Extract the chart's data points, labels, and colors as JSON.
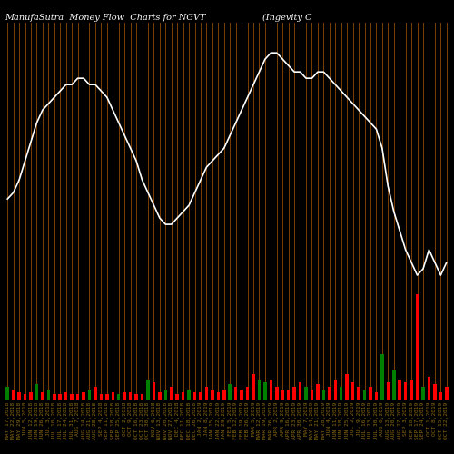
{
  "title": "ManufaSutra  Money Flow  Charts for NGVT                    (Ingevity C                                                      orpor",
  "background_color": "#000000",
  "bar_line_color": "#8B4500",
  "price_line_color": "#ffffff",
  "bar_colors": [
    "green",
    "red",
    "red",
    "red",
    "red",
    "green",
    "red",
    "green",
    "red",
    "red",
    "red",
    "red",
    "red",
    "red",
    "green",
    "red",
    "red",
    "red",
    "red",
    "green",
    "red",
    "red",
    "red",
    "red",
    "green",
    "red",
    "red",
    "green",
    "red",
    "red",
    "red",
    "green",
    "red",
    "red",
    "red",
    "red",
    "red",
    "red",
    "green",
    "red",
    "red",
    "red",
    "red",
    "green",
    "green",
    "red",
    "red",
    "red",
    "red",
    "red",
    "red",
    "green",
    "red",
    "red",
    "green",
    "red",
    "red",
    "green",
    "red",
    "red",
    "red",
    "green",
    "red",
    "red",
    "green",
    "red",
    "green",
    "red",
    "red",
    "red",
    "red",
    "green",
    "red",
    "red",
    "red",
    "red"
  ],
  "bar_heights": [
    5,
    4,
    3,
    2,
    3,
    6,
    3,
    4,
    2,
    2,
    3,
    2,
    2,
    3,
    4,
    5,
    2,
    2,
    3,
    2,
    3,
    3,
    2,
    2,
    8,
    7,
    3,
    4,
    5,
    2,
    3,
    4,
    3,
    3,
    5,
    4,
    3,
    4,
    6,
    5,
    4,
    5,
    10,
    8,
    7,
    8,
    5,
    4,
    4,
    5,
    7,
    5,
    4,
    6,
    4,
    5,
    8,
    5,
    10,
    7,
    5,
    4,
    5,
    3,
    18,
    7,
    12,
    8,
    7,
    8,
    42,
    5,
    9,
    6,
    3,
    5
  ],
  "price_values": [
    55,
    56,
    58,
    61,
    64,
    67,
    69,
    70,
    71,
    72,
    73,
    73,
    74,
    74,
    73,
    73,
    72,
    71,
    69,
    67,
    65,
    63,
    61,
    58,
    56,
    54,
    52,
    51,
    51,
    52,
    53,
    54,
    56,
    58,
    60,
    61,
    62,
    63,
    65,
    67,
    69,
    71,
    73,
    75,
    77,
    78,
    78,
    77,
    76,
    75,
    75,
    74,
    74,
    75,
    75,
    74,
    73,
    72,
    71,
    70,
    69,
    68,
    67,
    66,
    63,
    57,
    53,
    50,
    47,
    45,
    43,
    44,
    47,
    45,
    43,
    45
  ],
  "x_labels": [
    "MAY 17,2018",
    "MAY 22,2018",
    "MAY 29,2018",
    "JUN 5,2018",
    "JUN 12,2018",
    "JUN 19,2018",
    "JUN 26,2018",
    "JUL 3,2018",
    "JUL 10,2018",
    "JUL 17,2018",
    "JUL 24,2018",
    "JUL 31,2018",
    "AUG 7,2018",
    "AUG 14,2018",
    "AUG 21,2018",
    "AUG 28,2018",
    "SEP 4,2018",
    "SEP 11,2018",
    "SEP 18,2018",
    "SEP 25,2018",
    "OCT 2,2018",
    "OCT 9,2018",
    "OCT 16,2018",
    "OCT 23,2018",
    "OCT 30,2018",
    "NOV 6,2018",
    "NOV 13,2018",
    "NOV 20,2018",
    "NOV 27,2018",
    "DEC 4,2018",
    "DEC 11,2018",
    "DEC 18,2018",
    "DEC 26,2018",
    "JAN 2,2019",
    "JAN 8,2019",
    "JAN 15,2019",
    "JAN 22,2019",
    "JAN 29,2019",
    "FEB 5,2019",
    "FEB 12,2019",
    "FEB 19,2019",
    "FEB 26,2019",
    "MAR 5,2019",
    "MAR 12,2019",
    "MAR 19,2019",
    "MAR 26,2019",
    "APR 2,2019",
    "APR 9,2019",
    "APR 16,2019",
    "APR 23,2019",
    "APR 30,2019",
    "MAY 7,2019",
    "MAY 14,2019",
    "MAY 21,2019",
    "MAY 28,2019",
    "JUN 4,2019",
    "JUN 11,2019",
    "JUN 18,2019",
    "JUN 25,2019",
    "JUL 2,2019",
    "JUL 9,2019",
    "JUL 16,2019",
    "JUL 23,2019",
    "JUL 30,2019",
    "AUG 6,2019",
    "AUG 13,2019",
    "AUG 20,2019",
    "AUG 27,2019",
    "SEP 3,2019",
    "SEP 10,2019",
    "SEP 17,2019",
    "SEP 24,2019",
    "OCT 1,2019",
    "OCT 8,2019",
    "OCT 15,2019",
    "OCT 22,2019"
  ],
  "n_bars": 76,
  "title_fontsize": 7,
  "title_color": "#ffffff",
  "label_fontsize": 4.5
}
